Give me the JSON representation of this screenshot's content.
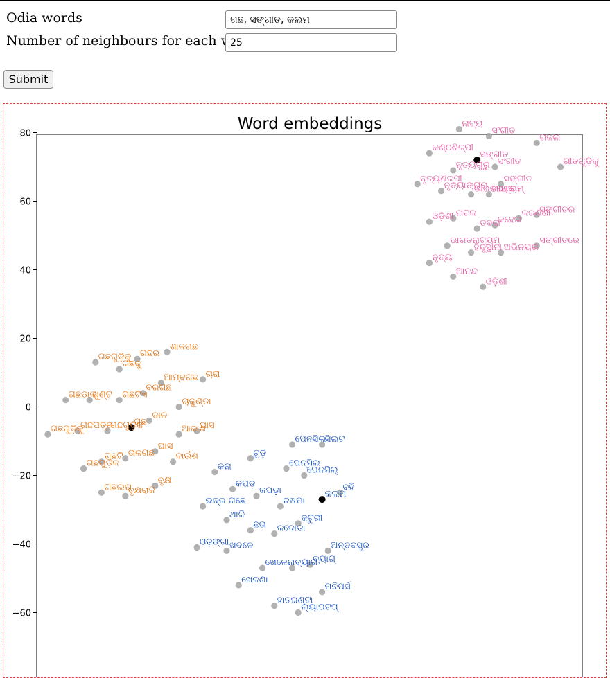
{
  "form": {
    "words_label": "Odia words",
    "words_value": "ଗଛ, ସଙ୍ଗୀତ, କଲମ",
    "neighbours_label": "Number of neighbours for each word",
    "neighbours_value": "25",
    "submit_label": "Submit"
  },
  "chart_data": {
    "type": "scatter",
    "title": "Word embeddings",
    "xlabel": "",
    "ylabel": "",
    "ylim": [
      -64,
      89
    ],
    "yticks": [
      80,
      60,
      40,
      20,
      0,
      -20,
      -40,
      -60
    ],
    "grid": false,
    "series": [
      {
        "color": "#e85fa6",
        "center": {
          "x": 59,
          "y": 72,
          "label": "ସଙ୍ଗୀତ"
        },
        "points": [
          {
            "x": 56,
            "y": 81,
            "label": "ନାଟ୍ୟ"
          },
          {
            "x": 61,
            "y": 79,
            "label": "ସଂଗୀତ"
          },
          {
            "x": 69,
            "y": 77,
            "label": "ଗଜଲ"
          },
          {
            "x": 51,
            "y": 74,
            "label": "କଣ୍ଠଶିଳ୍ପୀ"
          },
          {
            "x": 59,
            "y": 72,
            "label": "ସଙ୍ଗୀତ"
          },
          {
            "x": 62,
            "y": 70,
            "label": "ସଂଗୀତ"
          },
          {
            "x": 73,
            "y": 70,
            "label": "ଗୀତଗୁଡ଼ିକୁ"
          },
          {
            "x": 55,
            "y": 69,
            "label": "ନୃତ୍ୟଗୁରୁ"
          },
          {
            "x": 49,
            "y": 65,
            "label": "ନୃତ୍ୟଶିଳ୍ପୀ"
          },
          {
            "x": 63,
            "y": 65,
            "label": "ସଙ୍ଗୀତ"
          },
          {
            "x": 53,
            "y": 63,
            "label": "ନୃତ୍ୟାଙ୍ଗନା"
          },
          {
            "x": 58,
            "y": 62,
            "label": "ଭାରତନାଟ୍ୟମ୍"
          },
          {
            "x": 61,
            "y": 62,
            "label": "ଗାୟକ"
          },
          {
            "x": 51,
            "y": 54,
            "label": "ଓଡ଼ିଶୀ"
          },
          {
            "x": 55,
            "y": 55,
            "label": "ନାଟକ"
          },
          {
            "x": 59,
            "y": 52,
            "label": "ତବଲା"
          },
          {
            "x": 62,
            "y": 53,
            "label": "କହେଇ"
          },
          {
            "x": 66,
            "y": 55,
            "label": "କରଣଣା"
          },
          {
            "x": 69,
            "y": 56,
            "label": "ସଙ୍ଗୀତର"
          },
          {
            "x": 54,
            "y": 47,
            "label": "ଭାରତନାଟ୍ୟମ୍"
          },
          {
            "x": 58,
            "y": 45,
            "label": "ହିନ୍ଦୁସ୍ଥାନୀ"
          },
          {
            "x": 63,
            "y": 45,
            "label": "ଅଭିନୟର"
          },
          {
            "x": 69,
            "y": 47,
            "label": "ସଙ୍ଗୀତରେ"
          },
          {
            "x": 51,
            "y": 42,
            "label": "ନୃତ୍ୟ"
          },
          {
            "x": 55,
            "y": 38,
            "label": "ଆନନ୍ଦ"
          },
          {
            "x": 60,
            "y": 35,
            "label": "ଓଡ଼ିଶୀ"
          }
        ]
      },
      {
        "color": "#e8730c",
        "center": {
          "x": 1,
          "y": -6,
          "label": "ଗଛ"
        },
        "points": [
          {
            "x": -5,
            "y": 13,
            "label": "ଗଛଗୁଡ଼ିକୁ"
          },
          {
            "x": -1,
            "y": 11,
            "label": "ଗଛକୁ"
          },
          {
            "x": 2,
            "y": 14,
            "label": "ଗଛର"
          },
          {
            "x": 7,
            "y": 16,
            "label": "ଶାଳଗଛ"
          },
          {
            "x": 6,
            "y": 7,
            "label": "ଆମ୍ବଗଛ"
          },
          {
            "x": 13,
            "y": 8,
            "label": "ଚାରା"
          },
          {
            "x": -10,
            "y": 2,
            "label": "ଗଛଡାଳ"
          },
          {
            "x": -6,
            "y": 2,
            "label": "ଖୁଣ୍ଟ"
          },
          {
            "x": -1,
            "y": 2,
            "label": "ଗଛଟିଏ"
          },
          {
            "x": 3,
            "y": 4,
            "label": "ବରଗଛ"
          },
          {
            "x": 9,
            "y": 0,
            "label": "ଚାକୁଣ୍ଡା"
          },
          {
            "x": -13,
            "y": -8,
            "label": "ଗଛଗୁଡ଼ିକୁ"
          },
          {
            "x": -8,
            "y": -7,
            "label": "ଗଛପତ୍ର"
          },
          {
            "x": -3,
            "y": -7,
            "label": "ଗଛଗୁଡ଼ିକ"
          },
          {
            "x": 1,
            "y": -6,
            "label": "ଗଛ"
          },
          {
            "x": 4,
            "y": -4,
            "label": "ଡାଳ"
          },
          {
            "x": 9,
            "y": -8,
            "label": "ଆକାଶ"
          },
          {
            "x": 12,
            "y": -7,
            "label": "ଘାସ"
          },
          {
            "x": -7,
            "y": -18,
            "label": "ଗଛଗୁଡ଼ିକ"
          },
          {
            "x": -4,
            "y": -16,
            "label": "ଗଛଟି"
          },
          {
            "x": 0,
            "y": -15,
            "label": "ତାଳଗଛ"
          },
          {
            "x": 5,
            "y": -13,
            "label": "ଘାସ"
          },
          {
            "x": 8,
            "y": -16,
            "label": "ବାଉଁଶ"
          },
          {
            "x": -4,
            "y": -25,
            "label": "ଗଛଲତା"
          },
          {
            "x": 0,
            "y": -26,
            "label": "ବୃକ୍ଷରାଜି"
          },
          {
            "x": 5,
            "y": -23,
            "label": "ବୃକ୍ଷ"
          }
        ]
      },
      {
        "color": "#1a56c9",
        "center": {
          "x": 33,
          "y": -27,
          "label": "କଲମ"
        },
        "points": [
          {
            "x": 21,
            "y": -15,
            "label": "ଚୁଡ଼ି"
          },
          {
            "x": 28,
            "y": -11,
            "label": "ପେନସିଲ"
          },
          {
            "x": 33,
            "y": -11,
            "label": "ସିଲଟ"
          },
          {
            "x": 15,
            "y": -19,
            "label": "କନା"
          },
          {
            "x": 27,
            "y": -18,
            "label": "ପେନ୍ସିଲ"
          },
          {
            "x": 30,
            "y": -20,
            "label": "ପେନସିଲ୍"
          },
          {
            "x": 18,
            "y": -24,
            "label": "କପଡ଼"
          },
          {
            "x": 22,
            "y": -26,
            "label": "କପଡ଼ା"
          },
          {
            "x": 33,
            "y": -27,
            "label": "କଲମ"
          },
          {
            "x": 36,
            "y": -25,
            "label": "ବହି"
          },
          {
            "x": 13,
            "y": -29,
            "label": "ଭଦ୍ର ଗଛେ"
          },
          {
            "x": 17,
            "y": -33,
            "label": "ଥାଳି"
          },
          {
            "x": 26,
            "y": -29,
            "label": "ଚଷମା"
          },
          {
            "x": 21,
            "y": -36,
            "label": "ଛତା"
          },
          {
            "x": 25,
            "y": -37,
            "label": "କଦୋଡା"
          },
          {
            "x": 29,
            "y": -34,
            "label": "କଟୁରୀ"
          },
          {
            "x": 12,
            "y": -41,
            "label": "ଓଡ଼ଙ୍ଗା"
          },
          {
            "x": 17,
            "y": -42,
            "label": "ଖଦଳେ"
          },
          {
            "x": 34,
            "y": -42,
            "label": "ଅନ୍ତବସ୍ତ୍ର"
          },
          {
            "x": 23,
            "y": -47,
            "label": "ଖେଳେନା"
          },
          {
            "x": 28,
            "y": -47,
            "label": "ବ୍ୟାଗ"
          },
          {
            "x": 31,
            "y": -46,
            "label": "ବ୍ୟାଗ୍"
          },
          {
            "x": 19,
            "y": -52,
            "label": "ଖେଳଣା"
          },
          {
            "x": 33,
            "y": -54,
            "label": "ମନିପର୍ସ"
          },
          {
            "x": 25,
            "y": -58,
            "label": "ହାତଘଣ୍ଟା"
          },
          {
            "x": 29,
            "y": -60,
            "label": "ଲ୍ୟାପଟପ୍"
          }
        ]
      }
    ]
  }
}
